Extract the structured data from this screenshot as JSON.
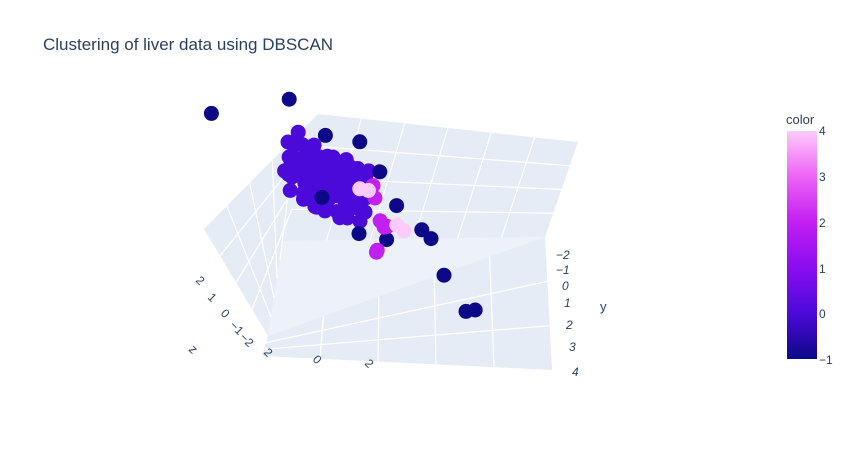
{
  "chart_data": {
    "type": "scatter3d",
    "title": "Clustering of liver data using DBSCAN",
    "axes": {
      "x": {
        "label": "",
        "ticks": [
          "0",
          "2"
        ]
      },
      "y": {
        "label": "y",
        "ticks": [
          "−2",
          "−1",
          "0",
          "1",
          "2",
          "3",
          "4"
        ]
      },
      "z": {
        "label": "z",
        "ticks": [
          "2",
          "1",
          "0",
          "−1",
          "−2"
        ]
      }
    },
    "colorbar": {
      "title": "color",
      "range": [
        -1,
        4
      ],
      "ticks": [
        "4",
        "3",
        "2",
        "1",
        "0",
        "−1"
      ],
      "colorscale": [
        "#0d0887",
        "#46039f",
        "#7201a8",
        "#9c179e",
        "#bd3786",
        "#d8576b",
        "#ed7953",
        "#fb9f3a",
        "#fdca26",
        "#f0f921"
      ]
    },
    "series": [
      {
        "color_value": -1,
        "points": [
          {
            "x": -3.2,
            "y": -2.6,
            "z": 0.2
          },
          {
            "x": -1.6,
            "y": -1.8,
            "z": 1.9
          },
          {
            "x": -0.2,
            "y": -1.6,
            "z": 1.4
          },
          {
            "x": 0.6,
            "y": -1.2,
            "z": 1.8
          },
          {
            "x": 1.6,
            "y": -1.2,
            "z": 1.2
          },
          {
            "x": 1.7,
            "y": -0.4,
            "z": 0.7
          },
          {
            "x": 2.6,
            "y": -0.2,
            "z": 0.4
          },
          {
            "x": 2.9,
            "y": -0.1,
            "z": 0.3
          },
          {
            "x": 2.8,
            "y": 0.8,
            "z": -0.3
          },
          {
            "x": 3.1,
            "y": 1.6,
            "z": -0.8
          },
          {
            "x": 3.6,
            "y": 1.4,
            "z": -0.7
          },
          {
            "x": -1.4,
            "y": 0.1,
            "z": 0.1
          },
          {
            "x": -0.6,
            "y": 0.9,
            "z": -0.2
          },
          {
            "x": 0.7,
            "y": 0.6,
            "z": -0.1
          }
        ]
      },
      {
        "color_value": 0,
        "cluster_center": {
          "x": -0.6,
          "y": -0.7,
          "z": 0.5
        },
        "note_count_points": 150
      },
      {
        "color_value": 2,
        "points": [
          {
            "x": 0.9,
            "y": -0.6,
            "z": 0.9
          },
          {
            "x": 1.0,
            "y": -0.5,
            "z": 0.6
          },
          {
            "x": 0.8,
            "y": 0.1,
            "z": 0.2
          },
          {
            "x": 0.9,
            "y": 0.2,
            "z": 0.1
          },
          {
            "x": 0.5,
            "y": 0.6,
            "z": -0.6
          },
          {
            "x": 0.4,
            "y": 0.7,
            "z": -0.5
          },
          {
            "x": 1.2,
            "y": 0.0,
            "z": 0.1
          }
        ]
      },
      {
        "color_value": 4,
        "points": [
          {
            "x": 0.6,
            "y": -0.7,
            "z": 0.6
          },
          {
            "x": 0.8,
            "y": -0.6,
            "z": 0.7
          },
          {
            "x": 1.4,
            "y": 0.1,
            "z": 0.3
          },
          {
            "x": 1.8,
            "y": 0.0,
            "z": 0.2
          }
        ]
      }
    ],
    "grid": true,
    "legend": "colorbar-right"
  }
}
